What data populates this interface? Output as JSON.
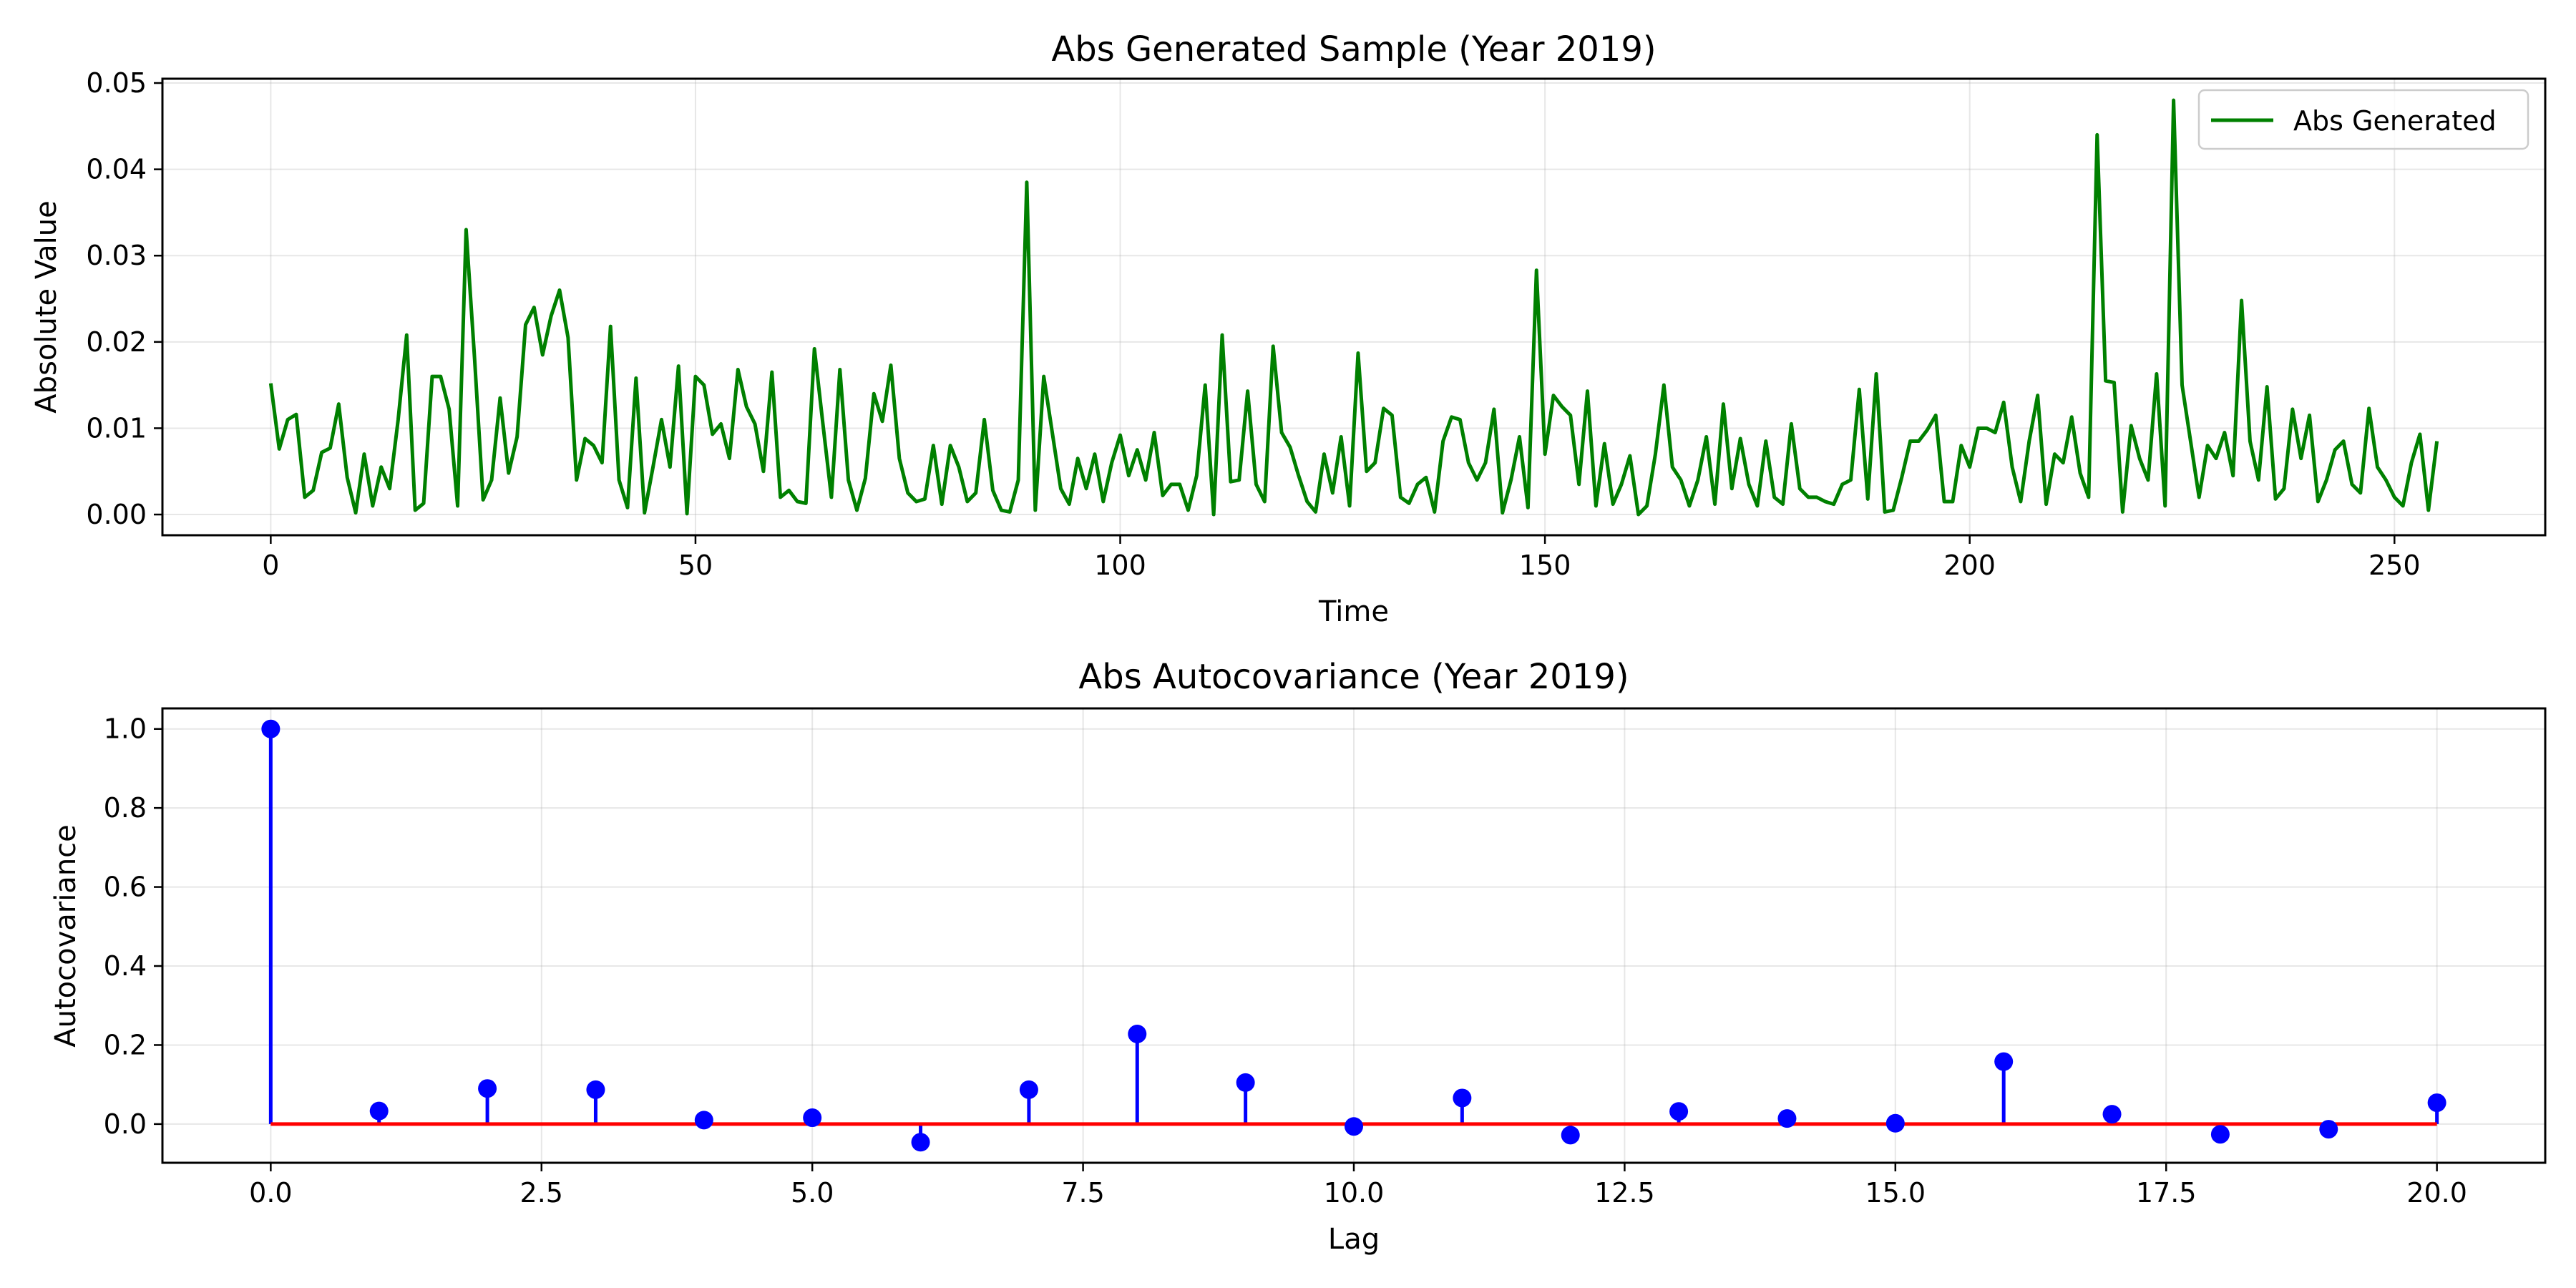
{
  "colors": {
    "line": "#008000",
    "stem": "#0000ff",
    "marker": "#0000ff",
    "baseline": "#ff0000",
    "grid": "#b0b0b0",
    "axes": "#000000"
  },
  "chart_data": [
    {
      "type": "line",
      "title": "Abs Generated Sample (Year 2019)",
      "xlabel": "Time",
      "ylabel": "Absolute Value",
      "xlim": [
        -12.75,
        267.75
      ],
      "ylim": [
        -0.0024,
        0.0505
      ],
      "xticks": [
        0,
        50,
        100,
        150,
        200,
        250
      ],
      "xtick_labels": [
        "0",
        "50",
        "100",
        "150",
        "200",
        "250"
      ],
      "yticks": [
        0.0,
        0.01,
        0.02,
        0.03,
        0.04,
        0.05
      ],
      "ytick_labels": [
        "0.00",
        "0.01",
        "0.02",
        "0.03",
        "0.04",
        "0.05"
      ],
      "grid": true,
      "legend": {
        "position": "upper right",
        "entries": [
          "Abs Generated"
        ]
      },
      "series": [
        {
          "name": "Abs Generated",
          "x_start": 0,
          "x_step": 1,
          "values": [
            0.0152,
            0.0076,
            0.011,
            0.0116,
            0.002,
            0.0028,
            0.0072,
            0.0077,
            0.0128,
            0.0043,
            0.0002,
            0.007,
            0.001,
            0.0055,
            0.003,
            0.011,
            0.0208,
            0.0005,
            0.0013,
            0.016,
            0.016,
            0.0122,
            0.001,
            0.033,
            0.018,
            0.0017,
            0.004,
            0.0135,
            0.0048,
            0.009,
            0.022,
            0.024,
            0.0185,
            0.023,
            0.026,
            0.0205,
            0.004,
            0.0088,
            0.008,
            0.006,
            0.0218,
            0.004,
            0.0008,
            0.0158,
            0.0002,
            0.0055,
            0.011,
            0.0055,
            0.0172,
            0.0001,
            0.016,
            0.015,
            0.0093,
            0.0105,
            0.0065,
            0.0168,
            0.0125,
            0.0105,
            0.005,
            0.0165,
            0.002,
            0.0028,
            0.0015,
            0.0013,
            0.0192,
            0.0105,
            0.002,
            0.0168,
            0.004,
            0.0005,
            0.0042,
            0.014,
            0.0108,
            0.0173,
            0.0065,
            0.0025,
            0.0015,
            0.0018,
            0.008,
            0.0012,
            0.008,
            0.0055,
            0.0015,
            0.0025,
            0.011,
            0.0028,
            0.0005,
            0.0003,
            0.004,
            0.0385,
            0.0005,
            0.016,
            0.0095,
            0.003,
            0.0012,
            0.0065,
            0.003,
            0.007,
            0.0015,
            0.006,
            0.0092,
            0.0045,
            0.0075,
            0.004,
            0.0095,
            0.0022,
            0.0035,
            0.0035,
            0.0005,
            0.0045,
            0.015,
            0.0,
            0.0208,
            0.0038,
            0.004,
            0.0143,
            0.0035,
            0.0015,
            0.0195,
            0.0095,
            0.0078,
            0.0045,
            0.0015,
            0.0003,
            0.007,
            0.0025,
            0.009,
            0.001,
            0.0187,
            0.005,
            0.006,
            0.0123,
            0.0115,
            0.002,
            0.0013,
            0.0035,
            0.0043,
            0.0003,
            0.0085,
            0.0113,
            0.011,
            0.006,
            0.004,
            0.006,
            0.0122,
            0.0002,
            0.004,
            0.009,
            0.0008,
            0.0283,
            0.007,
            0.0138,
            0.0125,
            0.0115,
            0.0035,
            0.0143,
            0.001,
            0.0082,
            0.0012,
            0.0035,
            0.0068,
            0.0,
            0.001,
            0.007,
            0.015,
            0.0055,
            0.004,
            0.001,
            0.004,
            0.009,
            0.0012,
            0.0128,
            0.003,
            0.0088,
            0.0035,
            0.001,
            0.0085,
            0.002,
            0.0012,
            0.0105,
            0.003,
            0.002,
            0.002,
            0.0015,
            0.0012,
            0.0035,
            0.004,
            0.0145,
            0.0018,
            0.0163,
            0.0003,
            0.0005,
            0.0043,
            0.0085,
            0.0085,
            0.0098,
            0.0115,
            0.0015,
            0.0015,
            0.008,
            0.0055,
            0.01,
            0.01,
            0.0095,
            0.013,
            0.0055,
            0.0015,
            0.0085,
            0.0138,
            0.0012,
            0.007,
            0.006,
            0.0113,
            0.0048,
            0.002,
            0.044,
            0.0155,
            0.0153,
            0.0003,
            0.0103,
            0.0065,
            0.004,
            0.0163,
            0.001,
            0.048,
            0.015,
            0.0085,
            0.002,
            0.008,
            0.0065,
            0.0095,
            0.0045,
            0.0248,
            0.0085,
            0.004,
            0.0148,
            0.0018,
            0.003,
            0.0122,
            0.0065,
            0.0115,
            0.0015,
            0.004,
            0.0075,
            0.0085,
            0.0035,
            0.0025,
            0.0123,
            0.0055,
            0.004,
            0.002,
            0.001,
            0.006,
            0.0093,
            0.0005,
            0.0085
          ]
        }
      ]
    },
    {
      "type": "stem",
      "title": "Abs Autocovariance (Year 2019)",
      "xlabel": "Lag",
      "ylabel": "Autocovariance",
      "xlim": [
        -1.0,
        21.0
      ],
      "ylim": [
        -0.098,
        1.052
      ],
      "xticks": [
        0.0,
        2.5,
        5.0,
        7.5,
        10.0,
        12.5,
        15.0,
        17.5,
        20.0
      ],
      "xtick_labels": [
        "0.0",
        "2.5",
        "5.0",
        "7.5",
        "10.0",
        "12.5",
        "15.0",
        "17.5",
        "20.0"
      ],
      "yticks": [
        0.0,
        0.2,
        0.4,
        0.6,
        0.8,
        1.0
      ],
      "ytick_labels": [
        "0.0",
        "0.2",
        "0.4",
        "0.6",
        "0.8",
        "1.0"
      ],
      "grid": true,
      "baseline": 0.0,
      "x": [
        0,
        1,
        2,
        3,
        4,
        5,
        6,
        7,
        8,
        9,
        10,
        11,
        12,
        13,
        14,
        15,
        16,
        17,
        18,
        19,
        20
      ],
      "values": [
        1.0,
        0.033,
        0.09,
        0.087,
        0.01,
        0.016,
        -0.046,
        0.087,
        0.228,
        0.105,
        -0.006,
        0.066,
        -0.028,
        0.032,
        0.014,
        0.002,
        0.158,
        0.025,
        -0.026,
        -0.013,
        0.054
      ]
    }
  ]
}
